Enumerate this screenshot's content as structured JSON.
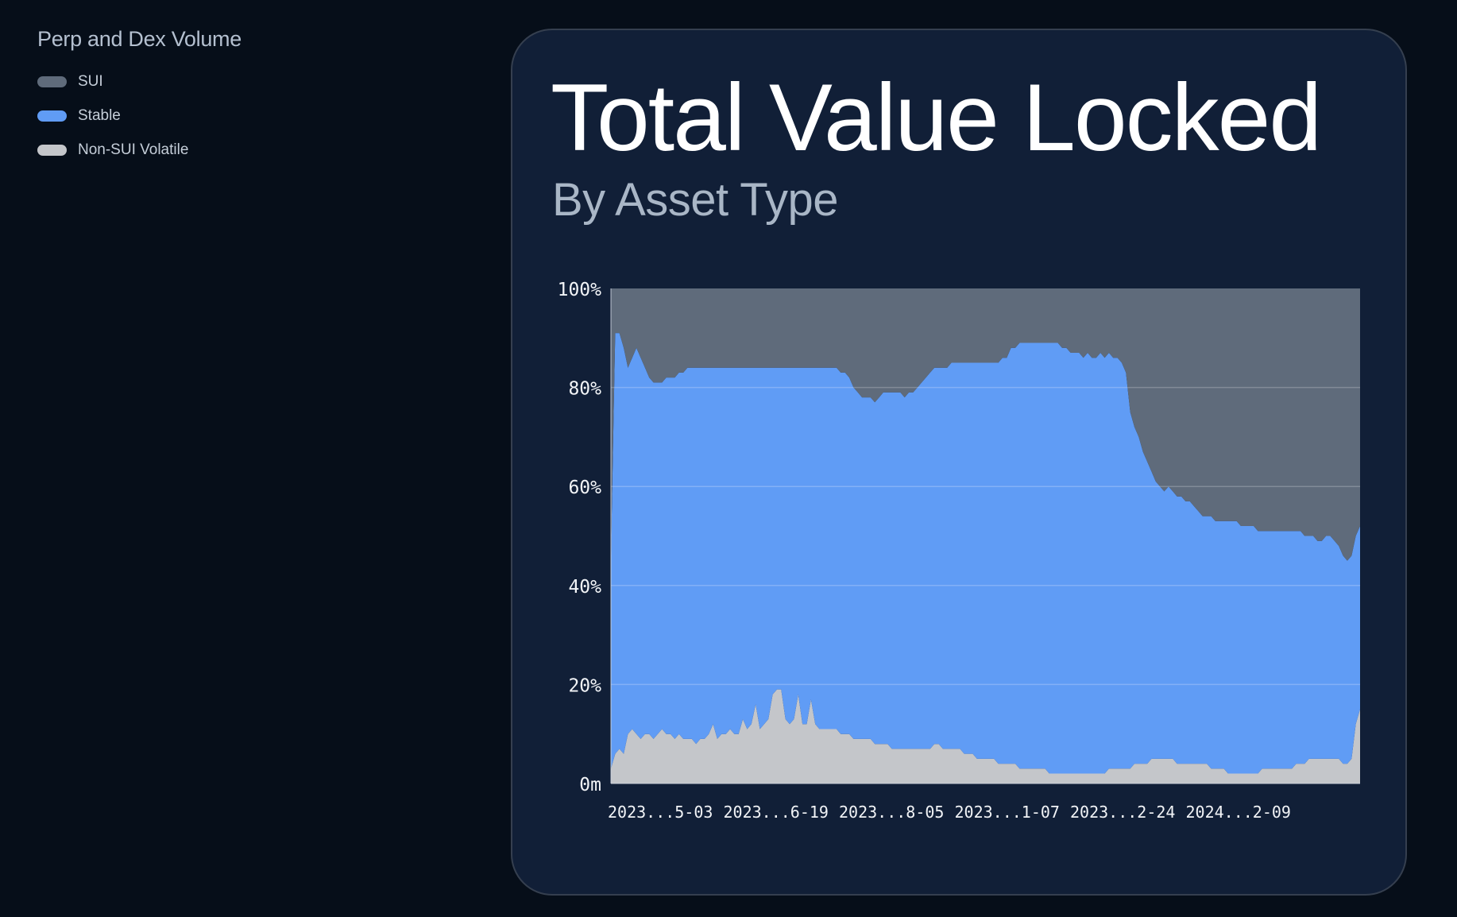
{
  "legend": {
    "title": "Perp and Dex Volume",
    "items": [
      {
        "label": "SUI",
        "color": "#5f6b7b"
      },
      {
        "label": "Stable",
        "color": "#609cf5"
      },
      {
        "label": "Non-SUI Volatile",
        "color": "#c4c6ca"
      }
    ]
  },
  "card": {
    "title": "Total Value Locked",
    "subtitle": "By Asset Type"
  },
  "chart_data": {
    "type": "area",
    "stacked": true,
    "normalized": true,
    "ylim": [
      0,
      100
    ],
    "y_ticks": [
      "0m",
      "20%",
      "40%",
      "60%",
      "80%",
      "100%"
    ],
    "x_tick_labels": [
      "2023...5-03",
      "2023...6-19",
      "2023...8-05",
      "2023...1-07",
      "2023...2-24",
      "2024...2-09"
    ],
    "grid": "horizontal",
    "series": [
      {
        "name": "Non-SUI Volatile",
        "color": "#c4c6ca",
        "values": [
          3,
          6,
          7,
          6,
          10,
          11,
          10,
          9,
          10,
          10,
          9,
          10,
          11,
          10,
          10,
          9,
          10,
          9,
          9,
          9,
          8,
          9,
          9,
          10,
          12,
          9,
          10,
          10,
          11,
          10,
          10,
          13,
          11,
          12,
          16,
          11,
          12,
          13,
          18,
          19,
          19,
          13,
          12,
          13,
          18,
          12,
          12,
          17,
          12,
          11,
          11,
          11,
          11,
          11,
          10,
          10,
          10,
          9,
          9,
          9,
          9,
          9,
          8,
          8,
          8,
          8,
          7,
          7,
          7,
          7,
          7,
          7,
          7,
          7,
          7,
          7,
          8,
          8,
          7,
          7,
          7,
          7,
          7,
          6,
          6,
          6,
          5,
          5,
          5,
          5,
          5,
          4,
          4,
          4,
          4,
          4,
          3,
          3,
          3,
          3,
          3,
          3,
          3,
          2,
          2,
          2,
          2,
          2,
          2,
          2,
          2,
          2,
          2,
          2,
          2,
          2,
          2,
          3,
          3,
          3,
          3,
          3,
          3,
          4,
          4,
          4,
          4,
          5,
          5,
          5,
          5,
          5,
          5,
          4,
          4,
          4,
          4,
          4,
          4,
          4,
          4,
          3,
          3,
          3,
          3,
          2,
          2,
          2,
          2,
          2,
          2,
          2,
          2,
          3,
          3,
          3,
          3,
          3,
          3,
          3,
          3,
          4,
          4,
          4,
          5,
          5,
          5,
          5,
          5,
          5,
          5,
          5,
          4,
          4,
          5,
          12,
          15
        ]
      },
      {
        "name": "Stable",
        "color": "#609cf5",
        "values": [
          43,
          85,
          84,
          82,
          74,
          75,
          78,
          77,
          74,
          72,
          72,
          71,
          70,
          72,
          72,
          73,
          73,
          74,
          75,
          75,
          76,
          75,
          75,
          74,
          72,
          75,
          74,
          74,
          73,
          74,
          74,
          71,
          73,
          72,
          68,
          73,
          72,
          71,
          66,
          65,
          65,
          71,
          72,
          71,
          66,
          72,
          72,
          67,
          72,
          73,
          73,
          73,
          73,
          73,
          73,
          73,
          72,
          71,
          70,
          69,
          69,
          69,
          69,
          70,
          71,
          71,
          72,
          72,
          72,
          71,
          72,
          72,
          73,
          74,
          75,
          76,
          76,
          76,
          77,
          77,
          78,
          78,
          78,
          79,
          79,
          79,
          80,
          80,
          80,
          80,
          80,
          81,
          82,
          82,
          84,
          84,
          86,
          86,
          86,
          86,
          86,
          86,
          86,
          87,
          87,
          87,
          86,
          86,
          85,
          85,
          85,
          84,
          85,
          84,
          84,
          85,
          84,
          84,
          83,
          83,
          82,
          80,
          72,
          68,
          66,
          63,
          61,
          58,
          56,
          55,
          54,
          55,
          54,
          54,
          54,
          53,
          53,
          52,
          51,
          50,
          50,
          51,
          50,
          50,
          50,
          51,
          51,
          51,
          50,
          50,
          50,
          50,
          49,
          48,
          48,
          48,
          48,
          48,
          48,
          48,
          48,
          47,
          47,
          46,
          45,
          45,
          44,
          44,
          45,
          45,
          44,
          43,
          42,
          41,
          41,
          38,
          37
        ]
      },
      {
        "name": "SUI",
        "color": "#5f6b7b",
        "values": [
          54,
          9,
          9,
          12,
          16,
          14,
          12,
          14,
          16,
          18,
          19,
          19,
          19,
          18,
          18,
          18,
          17,
          17,
          16,
          16,
          16,
          16,
          16,
          16,
          16,
          16,
          16,
          16,
          16,
          16,
          16,
          16,
          16,
          16,
          16,
          16,
          16,
          16,
          16,
          16,
          16,
          16,
          16,
          16,
          16,
          16,
          16,
          16,
          16,
          16,
          16,
          16,
          16,
          16,
          17,
          17,
          18,
          20,
          21,
          22,
          22,
          22,
          23,
          22,
          21,
          21,
          21,
          21,
          21,
          22,
          21,
          21,
          20,
          19,
          18,
          17,
          16,
          16,
          16,
          16,
          15,
          15,
          15,
          15,
          15,
          15,
          15,
          15,
          15,
          15,
          15,
          15,
          14,
          14,
          12,
          12,
          11,
          11,
          11,
          11,
          11,
          11,
          11,
          11,
          11,
          11,
          12,
          12,
          13,
          13,
          13,
          14,
          13,
          14,
          14,
          13,
          14,
          13,
          14,
          14,
          15,
          17,
          25,
          28,
          30,
          33,
          35,
          37,
          39,
          40,
          41,
          40,
          41,
          42,
          42,
          43,
          43,
          44,
          45,
          46,
          46,
          46,
          47,
          47,
          47,
          47,
          47,
          47,
          48,
          48,
          48,
          48,
          49,
          49,
          49,
          49,
          49,
          49,
          49,
          49,
          49,
          49,
          49,
          50,
          50,
          50,
          51,
          51,
          50,
          50,
          51,
          52,
          54,
          55,
          54,
          50,
          48
        ]
      }
    ]
  }
}
